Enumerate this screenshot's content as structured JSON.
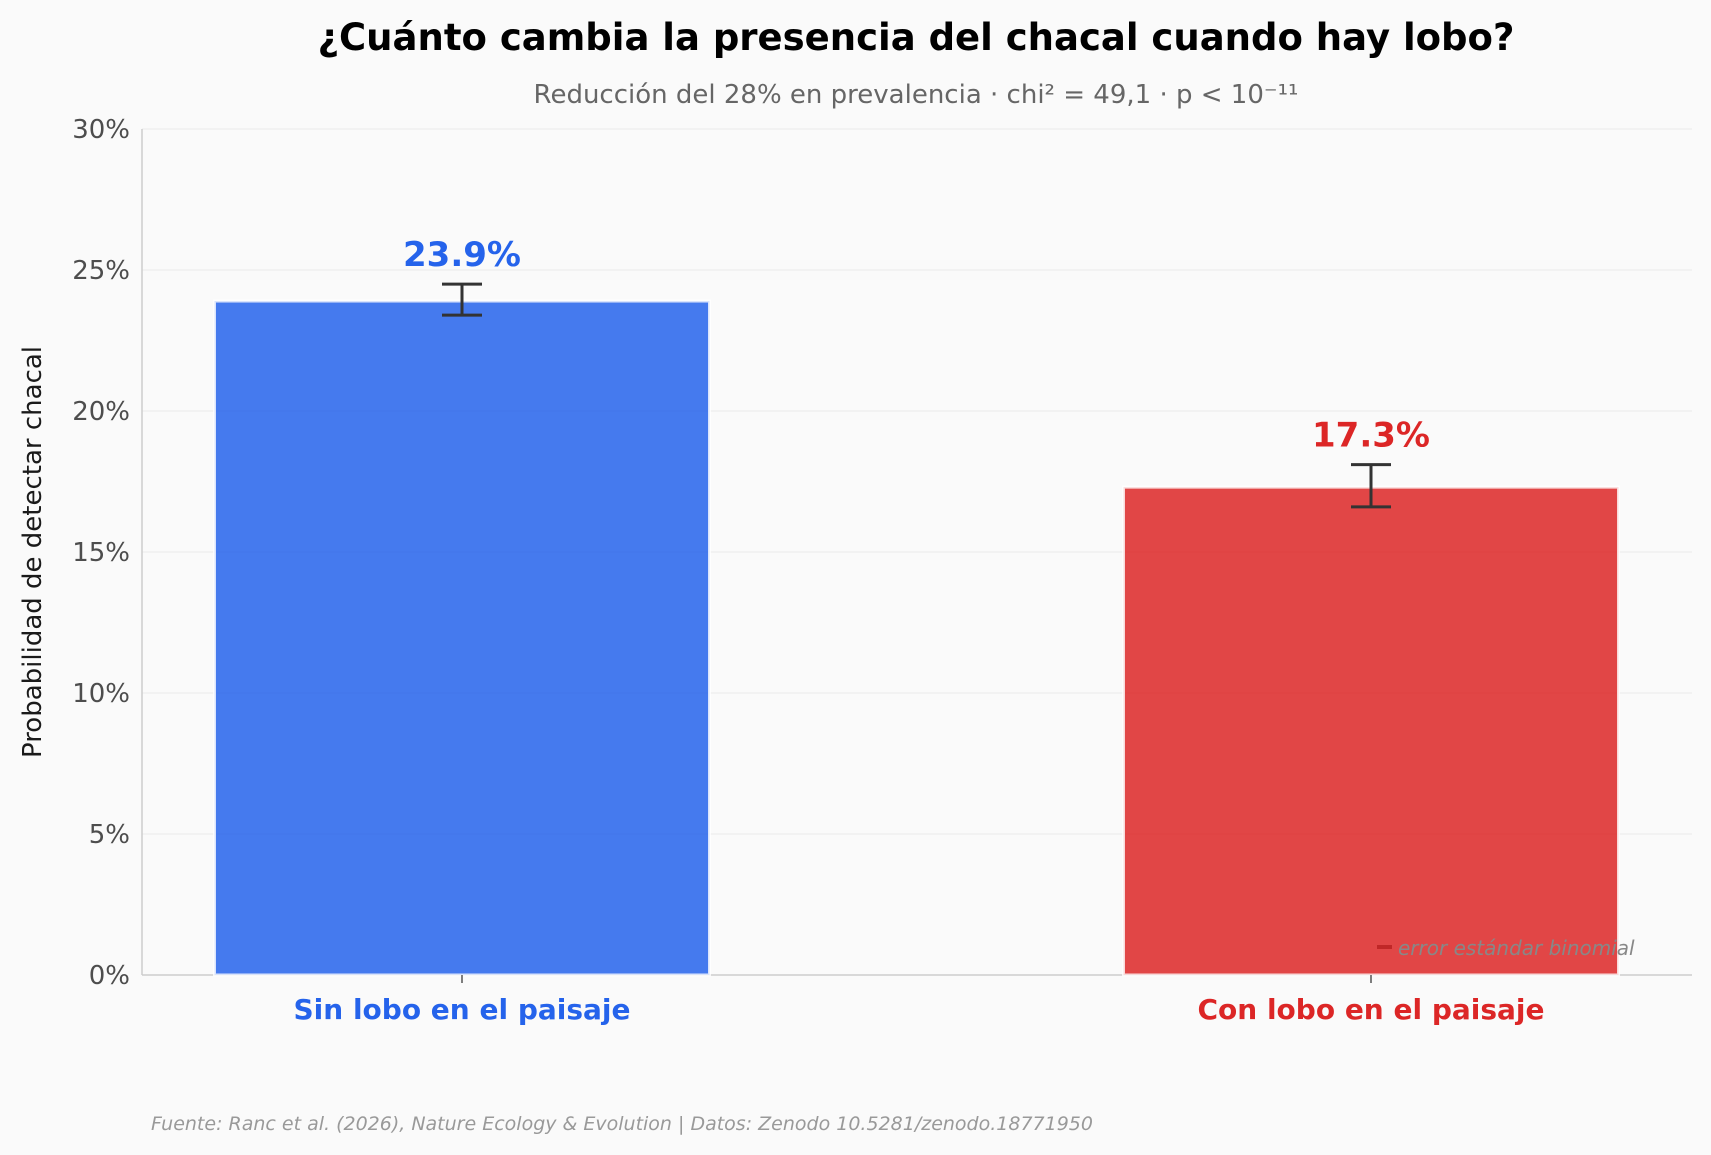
{
  "chart_data": {
    "type": "bar",
    "title": "¿Cuánto cambia la presencia del chacal cuando hay lobo?",
    "subtitle": "Reducción del 28% en prevalencia · chi² = 49,1 · p < 10⁻¹¹",
    "ylabel": "Probabilidad de detectar chacal",
    "xlabel": "",
    "ylim": [
      0,
      30
    ],
    "yticks": [
      0,
      5,
      10,
      15,
      20,
      25,
      30
    ],
    "ytick_labels": [
      "0%",
      "5%",
      "10%",
      "15%",
      "20%",
      "25%",
      "30%"
    ],
    "categories": [
      "Sin lobo en el paisaje",
      "Con lobo en el paisaje"
    ],
    "values": [
      23.9,
      17.3
    ],
    "error_low": [
      23.4,
      16.6
    ],
    "error_high": [
      24.5,
      18.1
    ],
    "data_labels": [
      "23.9%",
      "17.3%"
    ],
    "colors": [
      "#2563eb",
      "#dc2626"
    ],
    "grid": "horizontal",
    "legend_note": "error estándar binomial",
    "source": "Fuente: Ranc et al. (2026), Nature Ecology & Evolution | Datos: Zenodo 10.5281/zenodo.18771950"
  }
}
